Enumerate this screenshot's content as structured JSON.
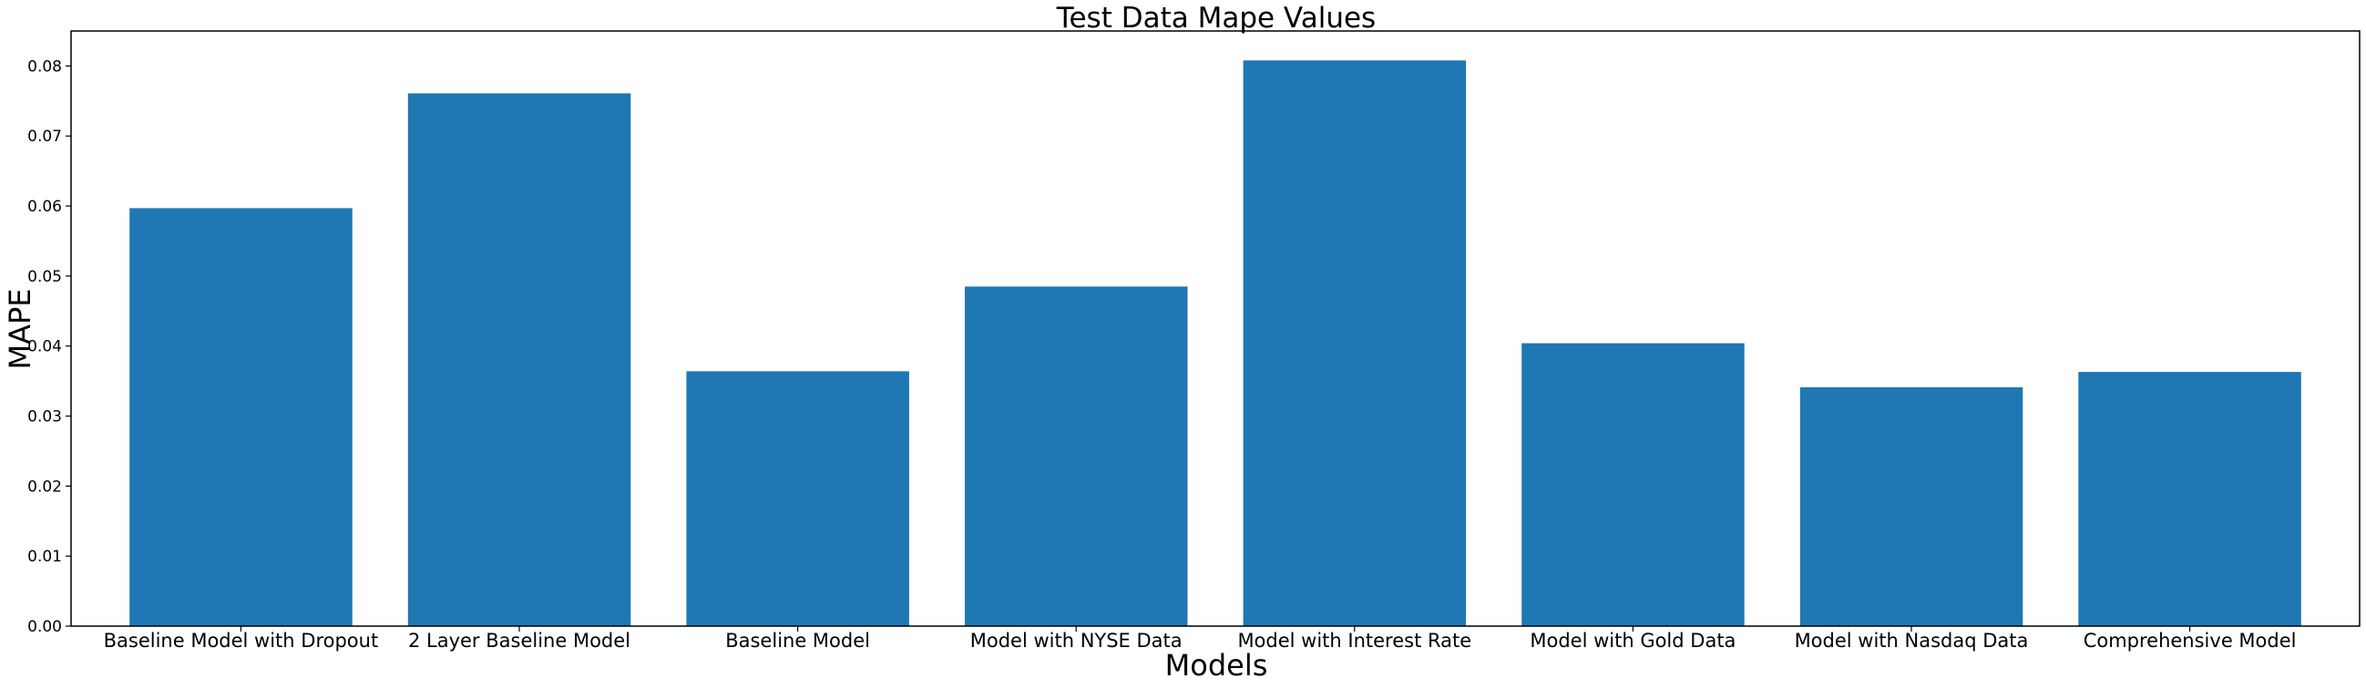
{
  "chart_data": {
    "type": "bar",
    "title": "Test Data Mape Values",
    "xlabel": "Models",
    "ylabel": "MAPE",
    "categories": [
      "Baseline Model with Dropout",
      "2 Layer Baseline Model",
      "Baseline Model",
      "Model with NYSE Data",
      "Model with Interest Rate",
      "Model with Gold Data",
      "Model with Nasdaq Data",
      "Comprehensive Model"
    ],
    "values": [
      0.0597,
      0.0761,
      0.0364,
      0.0485,
      0.0808,
      0.0404,
      0.0341,
      0.0363
    ],
    "ylim": [
      0,
      0.085
    ],
    "yticks": [
      "0.00",
      "0.01",
      "0.02",
      "0.03",
      "0.04",
      "0.05",
      "0.06",
      "0.07",
      "0.08"
    ],
    "grid": false,
    "legend": "none",
    "bar_color": "#1f77b4"
  }
}
